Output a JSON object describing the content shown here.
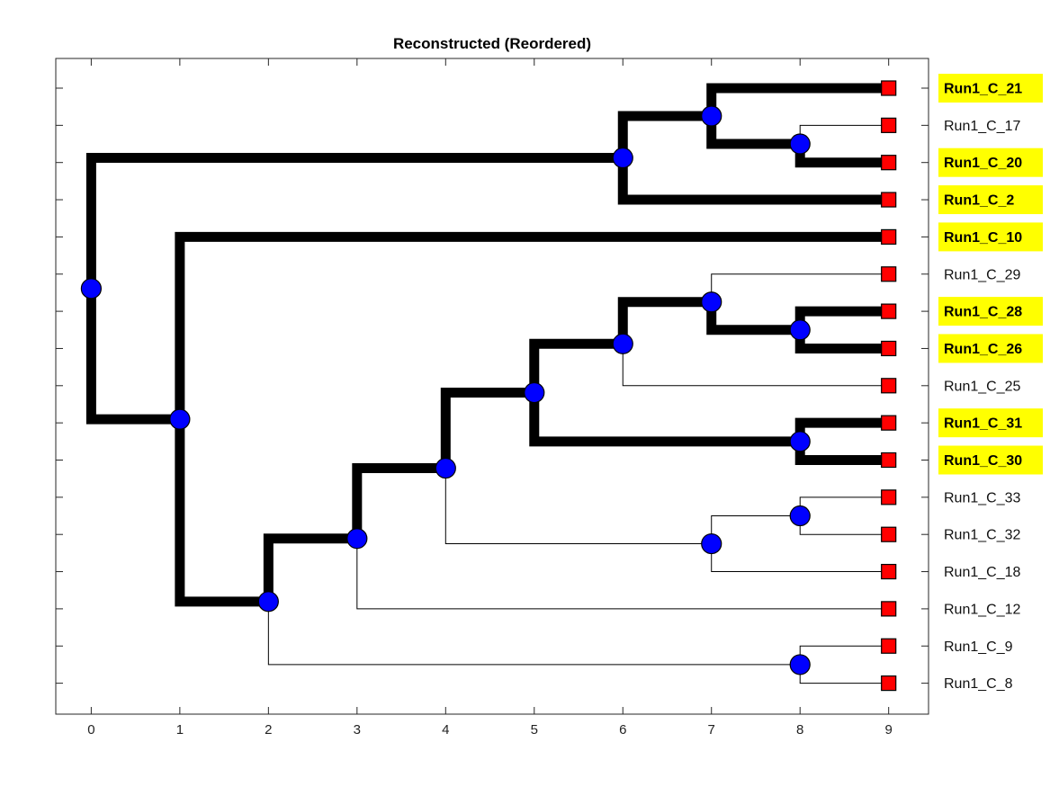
{
  "title": "Reconstructed (Reordered)",
  "chart_data": {
    "type": "dendrogram",
    "title": "Reconstructed (Reordered)",
    "xlim": [
      -0.4,
      9.45
    ],
    "x_ticks": [
      0,
      1,
      2,
      3,
      4,
      5,
      6,
      7,
      8,
      9
    ],
    "colors": {
      "node_fill": "#0000ff",
      "leaf_fill": "#ff0000",
      "highlight_bg": "#ffff00",
      "edge": "#000000"
    },
    "leaves": [
      {
        "label": "Run1_C_21",
        "highlighted": true
      },
      {
        "label": "Run1_C_17",
        "highlighted": false
      },
      {
        "label": "Run1_C_20",
        "highlighted": true
      },
      {
        "label": "Run1_C_2",
        "highlighted": true
      },
      {
        "label": "Run1_C_10",
        "highlighted": true
      },
      {
        "label": "Run1_C_29",
        "highlighted": false
      },
      {
        "label": "Run1_C_28",
        "highlighted": true
      },
      {
        "label": "Run1_C_26",
        "highlighted": true
      },
      {
        "label": "Run1_C_25",
        "highlighted": false
      },
      {
        "label": "Run1_C_31",
        "highlighted": true
      },
      {
        "label": "Run1_C_30",
        "highlighted": true
      },
      {
        "label": "Run1_C_33",
        "highlighted": false
      },
      {
        "label": "Run1_C_32",
        "highlighted": false
      },
      {
        "label": "Run1_C_18",
        "highlighted": false
      },
      {
        "label": "Run1_C_12",
        "highlighted": false
      },
      {
        "label": "Run1_C_9",
        "highlighted": false
      },
      {
        "label": "Run1_C_8",
        "highlighted": false
      }
    ],
    "tree": {
      "level": 0,
      "thick": true,
      "children": [
        {
          "level": 6,
          "thick": true,
          "children": [
            {
              "level": 7,
              "thick": true,
              "children": [
                {
                  "leaf": 0,
                  "thick": true
                },
                {
                  "level": 8,
                  "thick": true,
                  "children": [
                    {
                      "leaf": 1,
                      "thick": false
                    },
                    {
                      "leaf": 2,
                      "thick": true
                    }
                  ]
                }
              ]
            },
            {
              "leaf": 3,
              "thick": true
            }
          ]
        },
        {
          "level": 1,
          "thick": true,
          "children": [
            {
              "leaf": 4,
              "thick": true
            },
            {
              "level": 2,
              "thick": true,
              "children": [
                {
                  "level": 3,
                  "thick": true,
                  "children": [
                    {
                      "level": 4,
                      "thick": true,
                      "children": [
                        {
                          "level": 5,
                          "thick": true,
                          "children": [
                            {
                              "level": 6,
                              "thick": true,
                              "children": [
                                {
                                  "level": 7,
                                  "thick": true,
                                  "children": [
                                    {
                                      "leaf": 5,
                                      "thick": false
                                    },
                                    {
                                      "level": 8,
                                      "thick": true,
                                      "children": [
                                        {
                                          "leaf": 6,
                                          "thick": true
                                        },
                                        {
                                          "leaf": 7,
                                          "thick": true
                                        }
                                      ]
                                    }
                                  ]
                                },
                                {
                                  "leaf": 8,
                                  "thick": false
                                }
                              ]
                            },
                            {
                              "level": 8,
                              "thick": true,
                              "children": [
                                {
                                  "leaf": 9,
                                  "thick": true
                                },
                                {
                                  "leaf": 10,
                                  "thick": true
                                }
                              ]
                            }
                          ]
                        },
                        {
                          "level": 7,
                          "thick": false,
                          "children": [
                            {
                              "level": 8,
                              "thick": false,
                              "children": [
                                {
                                  "leaf": 11,
                                  "thick": false
                                },
                                {
                                  "leaf": 12,
                                  "thick": false
                                }
                              ]
                            },
                            {
                              "leaf": 13,
                              "thick": false
                            }
                          ]
                        }
                      ]
                    },
                    {
                      "leaf": 14,
                      "thick": false
                    }
                  ]
                },
                {
                  "level": 8,
                  "thick": false,
                  "children": [
                    {
                      "leaf": 15,
                      "thick": false
                    },
                    {
                      "leaf": 16,
                      "thick": false
                    }
                  ]
                }
              ]
            }
          ]
        }
      ]
    }
  }
}
